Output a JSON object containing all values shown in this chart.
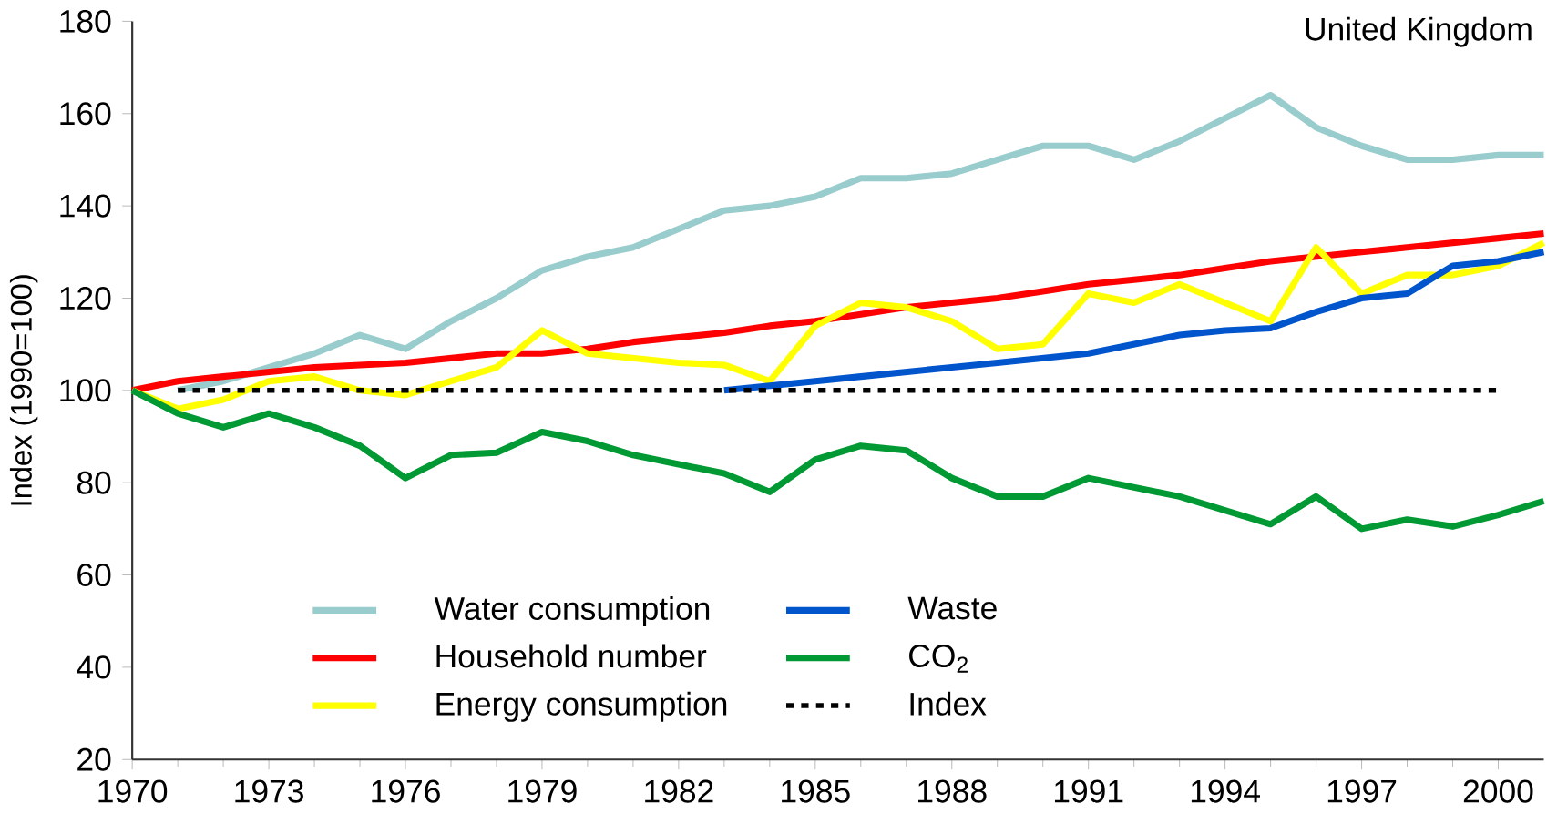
{
  "chart_data": {
    "type": "line",
    "ylabel": "Index (1990=100)",
    "annotations": [
      "United Kingdom"
    ],
    "x": [
      1970,
      1971,
      1972,
      1973,
      1974,
      1975,
      1976,
      1977,
      1978,
      1979,
      1980,
      1981,
      1982,
      1983,
      1984,
      1985,
      1986,
      1987,
      1988,
      1989,
      1990,
      1991,
      1992,
      1993,
      1994,
      1995,
      1996,
      1997,
      1998,
      1999,
      2000,
      2001
    ],
    "xlim": [
      1970,
      2001
    ],
    "xticks": [
      1970,
      1973,
      1976,
      1979,
      1982,
      1985,
      1988,
      1991,
      1994,
      1997,
      2000
    ],
    "ylim": [
      20,
      180
    ],
    "yticks": [
      20,
      40,
      60,
      80,
      100,
      120,
      140,
      160,
      180
    ],
    "legend": "bottom left",
    "grid": false,
    "line_style": "solid",
    "marker": "none",
    "series": [
      {
        "name": "Water consumption",
        "color": "#99cccc",
        "values": [
          null,
          100,
          102,
          105,
          108,
          112,
          109,
          115,
          120,
          126,
          129,
          131,
          135,
          139,
          140,
          142,
          146,
          146,
          147,
          150,
          153,
          153,
          150,
          154,
          159,
          164,
          157,
          153,
          150,
          150,
          151,
          151
        ]
      },
      {
        "name": "Household number",
        "color": "#ff0000",
        "values": [
          100,
          102,
          103,
          104,
          105,
          105.5,
          106,
          107,
          108,
          108,
          109,
          110.5,
          111.5,
          112.5,
          114,
          115,
          116.5,
          118,
          119,
          120,
          121.5,
          123,
          124,
          125,
          126.5,
          128,
          129,
          130,
          131,
          132,
          133,
          134
        ]
      },
      {
        "name": "Energy consumption",
        "color": "#ffff00",
        "values": [
          100,
          96,
          98,
          102,
          103,
          100,
          99,
          102,
          105,
          113,
          108,
          107,
          106,
          105.5,
          102,
          114,
          119,
          118,
          115,
          109,
          110,
          121,
          119,
          123,
          119,
          115,
          131,
          121,
          125,
          125,
          127,
          132
        ]
      },
      {
        "name": "Waste",
        "color": "#0055cc",
        "values": [
          null,
          null,
          null,
          null,
          null,
          null,
          null,
          null,
          null,
          null,
          null,
          null,
          null,
          100,
          101,
          102,
          103,
          104,
          105,
          106,
          107,
          108,
          110,
          112,
          113,
          113.5,
          117,
          120,
          121,
          127,
          128,
          130
        ]
      },
      {
        "name": "CO$_{2}$",
        "color": "#009933",
        "values": [
          100,
          95,
          92,
          95,
          92,
          88,
          81,
          86,
          86.5,
          91,
          89,
          86,
          84,
          82,
          78,
          85,
          88,
          87,
          81,
          77,
          77,
          81,
          79,
          77,
          74,
          71,
          77,
          70,
          72,
          70.5,
          73,
          76
        ]
      },
      {
        "name": "Index",
        "color": "#000000",
        "line_style": "dotted",
        "values": [
          null,
          100,
          100,
          100,
          100,
          100,
          100,
          100,
          100,
          100,
          100,
          100,
          100,
          100,
          100,
          100,
          100,
          100,
          100,
          100,
          100,
          100,
          100,
          100,
          100,
          100,
          100,
          100,
          100,
          100,
          100,
          null
        ]
      }
    ]
  }
}
